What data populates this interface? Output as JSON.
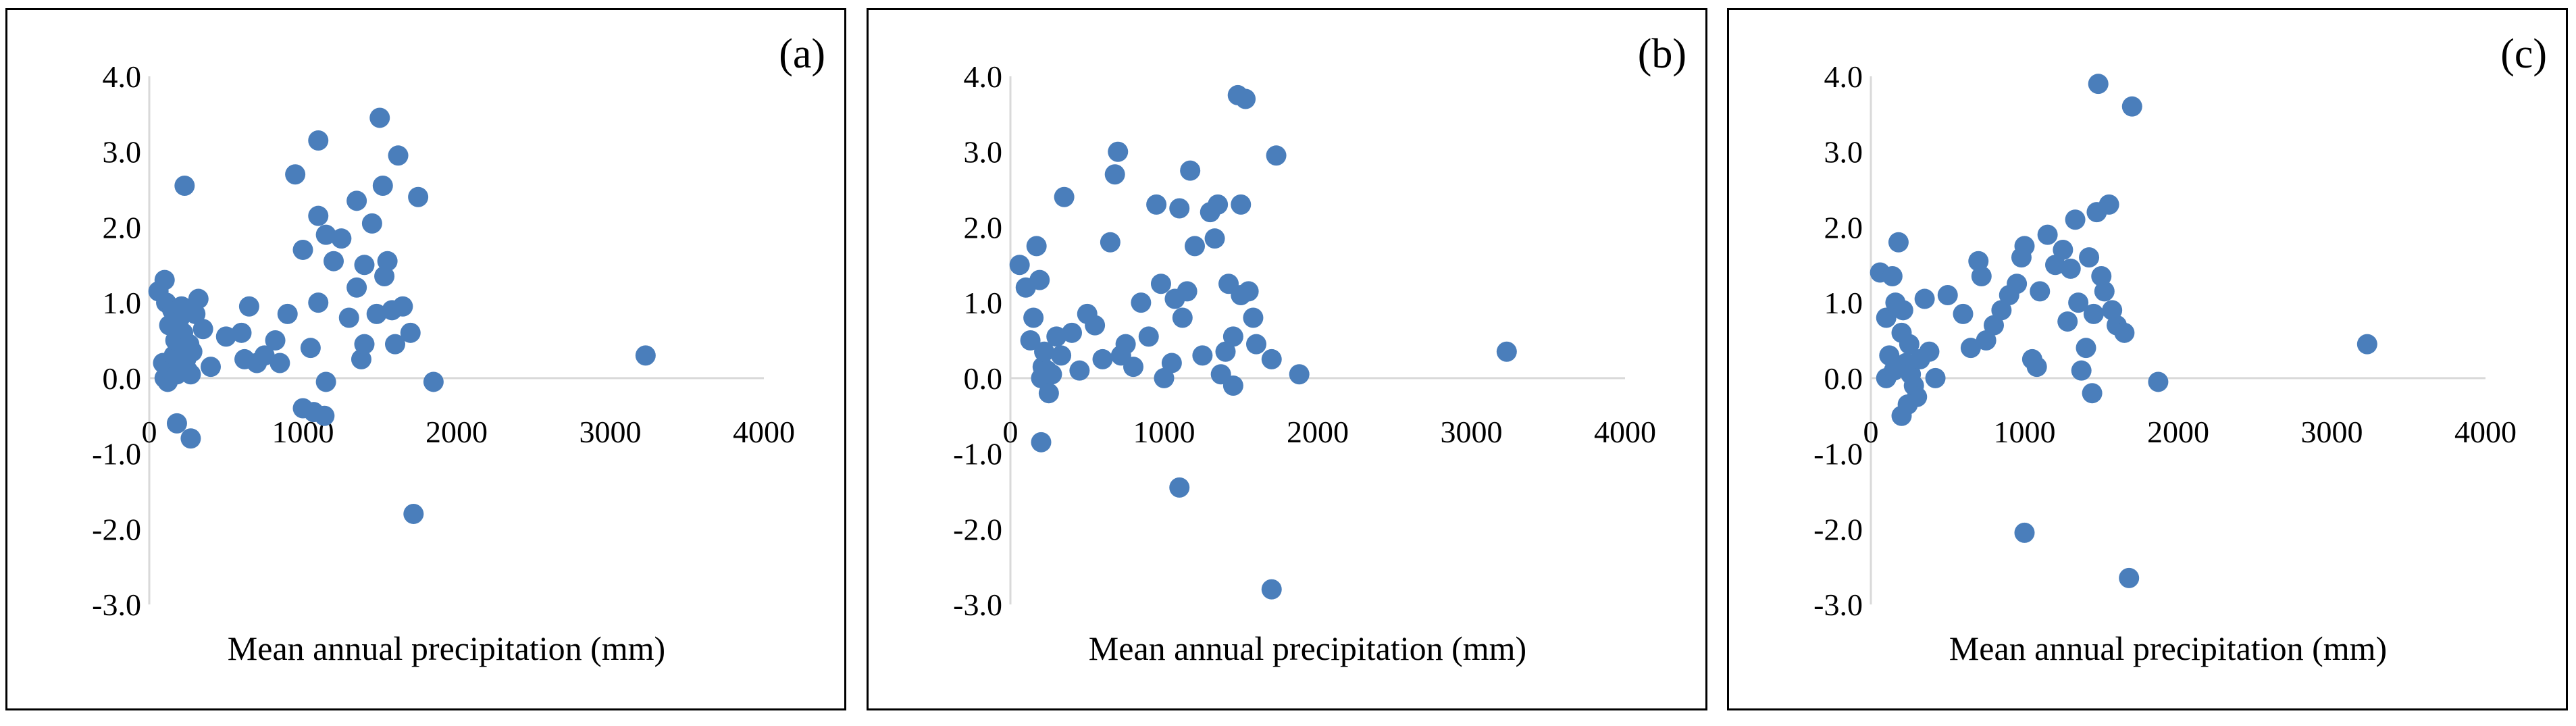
{
  "figure": {
    "marker_color": "#4a7ebb",
    "axis_color": "#d9d9d9"
  },
  "chart_data": [
    {
      "type": "scatter",
      "panel_label": "(a)",
      "xlabel": "Mean annual precipitation (mm)",
      "ylabel": "",
      "xlim": [
        0,
        4000
      ],
      "ylim": [
        -3,
        4
      ],
      "x_ticks": [
        "0",
        "1000",
        "2000",
        "3000",
        "4000"
      ],
      "y_ticks": [
        "4.0",
        "3.0",
        "2.0",
        "1.0",
        "0.0",
        "-1.0",
        "-2.0",
        "-3.0"
      ],
      "points": [
        [
          60,
          1.15
        ],
        [
          100,
          1.3
        ],
        [
          110,
          1.0
        ],
        [
          130,
          0.7
        ],
        [
          150,
          0.9
        ],
        [
          90,
          0.2
        ],
        [
          100,
          0.0
        ],
        [
          120,
          -0.05
        ],
        [
          140,
          0.1
        ],
        [
          160,
          0.3
        ],
        [
          170,
          0.5
        ],
        [
          180,
          0.05
        ],
        [
          190,
          0.2
        ],
        [
          200,
          0.8
        ],
        [
          210,
          0.95
        ],
        [
          220,
          0.6
        ],
        [
          230,
          0.4
        ],
        [
          240,
          0.25
        ],
        [
          250,
          0.1
        ],
        [
          260,
          0.45
        ],
        [
          270,
          0.05
        ],
        [
          280,
          0.35
        ],
        [
          300,
          0.85
        ],
        [
          320,
          1.05
        ],
        [
          350,
          0.65
        ],
        [
          400,
          0.15
        ],
        [
          180,
          -0.6
        ],
        [
          270,
          -0.8
        ],
        [
          230,
          2.55
        ],
        [
          500,
          0.55
        ],
        [
          600,
          0.6
        ],
        [
          650,
          0.95
        ],
        [
          620,
          0.25
        ],
        [
          700,
          0.2
        ],
        [
          750,
          0.3
        ],
        [
          820,
          0.5
        ],
        [
          850,
          0.2
        ],
        [
          900,
          0.85
        ],
        [
          950,
          2.7
        ],
        [
          1000,
          1.7
        ],
        [
          1050,
          0.4
        ],
        [
          1100,
          1.0
        ],
        [
          1100,
          3.15
        ],
        [
          1100,
          2.15
        ],
        [
          1150,
          1.9
        ],
        [
          1200,
          1.55
        ],
        [
          1250,
          1.85
        ],
        [
          1300,
          0.8
        ],
        [
          1350,
          2.35
        ],
        [
          1350,
          1.2
        ],
        [
          1380,
          0.25
        ],
        [
          1400,
          1.5
        ],
        [
          1400,
          0.45
        ],
        [
          1450,
          2.05
        ],
        [
          1480,
          0.85
        ],
        [
          1500,
          3.45
        ],
        [
          1520,
          2.55
        ],
        [
          1530,
          1.35
        ],
        [
          1550,
          1.55
        ],
        [
          1580,
          0.9
        ],
        [
          1600,
          0.45
        ],
        [
          1620,
          2.95
        ],
        [
          1650,
          0.95
        ],
        [
          1700,
          0.6
        ],
        [
          1750,
          2.4
        ],
        [
          1850,
          -0.05
        ],
        [
          1000,
          -0.4
        ],
        [
          1070,
          -0.45
        ],
        [
          1140,
          -0.5
        ],
        [
          1150,
          -0.05
        ],
        [
          1720,
          -1.8
        ],
        [
          3230,
          0.3
        ]
      ]
    },
    {
      "type": "scatter",
      "panel_label": "(b)",
      "xlabel": "Mean annual precipitation (mm)",
      "ylabel": "",
      "xlim": [
        0,
        4000
      ],
      "ylim": [
        -3,
        4
      ],
      "x_ticks": [
        "0",
        "1000",
        "2000",
        "3000",
        "4000"
      ],
      "y_ticks": [
        "4.0",
        "3.0",
        "2.0",
        "1.0",
        "0.0",
        "-1.0",
        "-2.0",
        "-3.0"
      ],
      "points": [
        [
          60,
          1.5
        ],
        [
          100,
          1.2
        ],
        [
          130,
          0.5
        ],
        [
          150,
          0.8
        ],
        [
          170,
          1.75
        ],
        [
          190,
          1.3
        ],
        [
          200,
          0.0
        ],
        [
          210,
          0.15
        ],
        [
          220,
          0.35
        ],
        [
          240,
          0.1
        ],
        [
          250,
          -0.2
        ],
        [
          270,
          0.05
        ],
        [
          300,
          0.55
        ],
        [
          330,
          0.3
        ],
        [
          200,
          -0.85
        ],
        [
          350,
          2.4
        ],
        [
          400,
          0.6
        ],
        [
          450,
          0.1
        ],
        [
          500,
          0.85
        ],
        [
          550,
          0.7
        ],
        [
          600,
          0.25
        ],
        [
          650,
          1.8
        ],
        [
          680,
          2.7
        ],
        [
          700,
          3.0
        ],
        [
          720,
          0.3
        ],
        [
          750,
          0.45
        ],
        [
          800,
          0.15
        ],
        [
          850,
          1.0
        ],
        [
          900,
          0.55
        ],
        [
          950,
          2.3
        ],
        [
          980,
          1.25
        ],
        [
          1000,
          0.0
        ],
        [
          1050,
          0.2
        ],
        [
          1070,
          1.05
        ],
        [
          1100,
          2.25
        ],
        [
          1120,
          0.8
        ],
        [
          1150,
          1.15
        ],
        [
          1170,
          2.75
        ],
        [
          1200,
          1.75
        ],
        [
          1250,
          0.3
        ],
        [
          1300,
          2.2
        ],
        [
          1330,
          1.85
        ],
        [
          1350,
          2.3
        ],
        [
          1370,
          0.05
        ],
        [
          1400,
          0.35
        ],
        [
          1420,
          1.25
        ],
        [
          1450,
          0.55
        ],
        [
          1450,
          -0.1
        ],
        [
          1480,
          3.75
        ],
        [
          1500,
          2.3
        ],
        [
          1500,
          1.1
        ],
        [
          1530,
          3.7
        ],
        [
          1550,
          1.15
        ],
        [
          1580,
          0.8
        ],
        [
          1600,
          0.45
        ],
        [
          1700,
          0.25
        ],
        [
          1730,
          2.95
        ],
        [
          1880,
          0.05
        ],
        [
          1100,
          -1.45
        ],
        [
          1700,
          -2.8
        ],
        [
          3230,
          0.35
        ]
      ]
    },
    {
      "type": "scatter",
      "panel_label": "(c)",
      "xlabel": "Mean annual precipitation (mm)",
      "ylabel": "",
      "xlim": [
        0,
        4000
      ],
      "ylim": [
        -3,
        4
      ],
      "x_ticks": [
        "0",
        "1000",
        "2000",
        "3000",
        "4000"
      ],
      "y_ticks": [
        "4.0",
        "3.0",
        "2.0",
        "1.0",
        "0.0",
        "-1.0",
        "-2.0",
        "-3.0"
      ],
      "points": [
        [
          60,
          1.4
        ],
        [
          100,
          0.8
        ],
        [
          120,
          0.3
        ],
        [
          140,
          1.35
        ],
        [
          160,
          1.0
        ],
        [
          180,
          1.8
        ],
        [
          200,
          0.6
        ],
        [
          210,
          0.9
        ],
        [
          230,
          0.2
        ],
        [
          250,
          0.45
        ],
        [
          260,
          0.05
        ],
        [
          280,
          -0.1
        ],
        [
          300,
          -0.25
        ],
        [
          320,
          0.25
        ],
        [
          350,
          1.05
        ],
        [
          380,
          0.35
        ],
        [
          200,
          -0.5
        ],
        [
          240,
          -0.35
        ],
        [
          100,
          0.0
        ],
        [
          150,
          0.1
        ],
        [
          420,
          0.0
        ],
        [
          500,
          1.1
        ],
        [
          600,
          0.85
        ],
        [
          650,
          0.4
        ],
        [
          700,
          1.55
        ],
        [
          720,
          1.35
        ],
        [
          750,
          0.5
        ],
        [
          800,
          0.7
        ],
        [
          850,
          0.9
        ],
        [
          900,
          1.1
        ],
        [
          950,
          1.25
        ],
        [
          980,
          1.6
        ],
        [
          1000,
          1.75
        ],
        [
          1050,
          0.25
        ],
        [
          1080,
          0.15
        ],
        [
          1100,
          1.15
        ],
        [
          1150,
          1.9
        ],
        [
          1200,
          1.5
        ],
        [
          1250,
          1.7
        ],
        [
          1280,
          0.75
        ],
        [
          1300,
          1.45
        ],
        [
          1330,
          2.1
        ],
        [
          1350,
          1.0
        ],
        [
          1370,
          0.1
        ],
        [
          1400,
          0.4
        ],
        [
          1420,
          1.6
        ],
        [
          1450,
          0.85
        ],
        [
          1470,
          2.2
        ],
        [
          1480,
          3.9
        ],
        [
          1500,
          1.35
        ],
        [
          1520,
          1.15
        ],
        [
          1550,
          2.3
        ],
        [
          1570,
          0.9
        ],
        [
          1600,
          0.7
        ],
        [
          1650,
          0.6
        ],
        [
          1700,
          3.6
        ],
        [
          1870,
          -0.05
        ],
        [
          1440,
          -0.2
        ],
        [
          1000,
          -2.05
        ],
        [
          1680,
          -2.65
        ],
        [
          3230,
          0.45
        ]
      ]
    }
  ]
}
